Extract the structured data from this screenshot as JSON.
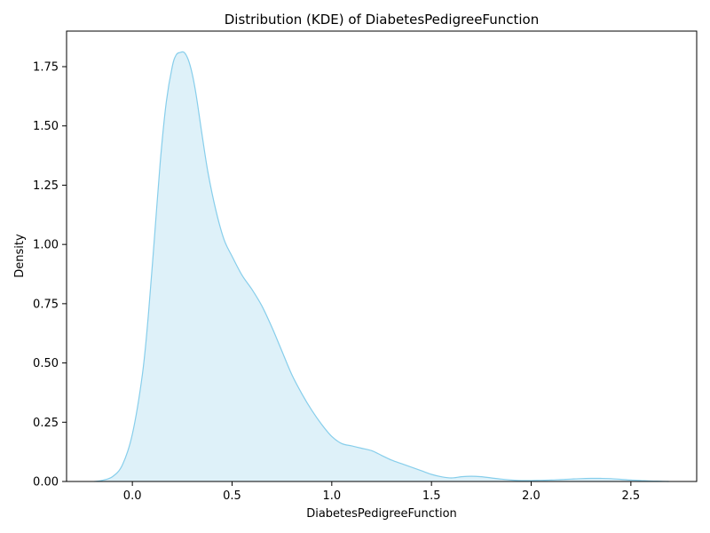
{
  "chart_data": {
    "type": "area",
    "title": "Distribution (KDE) of DiabetesPedigreeFunction",
    "xlabel": "DiabetesPedigreeFunction",
    "ylabel": "Density",
    "xlim": [
      -0.33,
      2.83
    ],
    "ylim": [
      0.0,
      1.9
    ],
    "xticks": [
      0.0,
      0.5,
      1.0,
      1.5,
      2.0,
      2.5
    ],
    "xtick_labels": [
      "0.0",
      "0.5",
      "1.0",
      "1.5",
      "2.0",
      "2.5"
    ],
    "yticks": [
      0.0,
      0.25,
      0.5,
      0.75,
      1.0,
      1.25,
      1.5,
      1.75
    ],
    "ytick_labels": [
      "0.00",
      "0.25",
      "0.50",
      "0.75",
      "1.00",
      "1.25",
      "1.50",
      "1.75"
    ],
    "grid": false,
    "line_color": "#87ceeb",
    "fill_color": "#87ceeb",
    "fill_opacity": 0.28,
    "series": [
      {
        "x": [
          -0.19,
          -0.15,
          -0.1,
          -0.05,
          0.0,
          0.05,
          0.08,
          0.11,
          0.14,
          0.17,
          0.2,
          0.22,
          0.24,
          0.26,
          0.28,
          0.3,
          0.32,
          0.35,
          0.38,
          0.42,
          0.46,
          0.5,
          0.55,
          0.6,
          0.65,
          0.7,
          0.75,
          0.8,
          0.85,
          0.9,
          0.95,
          1.0,
          1.05,
          1.1,
          1.15,
          1.2,
          1.25,
          1.3,
          1.35,
          1.4,
          1.45,
          1.5,
          1.55,
          1.6,
          1.65,
          1.7,
          1.75,
          1.8,
          1.85,
          1.9,
          1.95,
          2.0,
          2.05,
          2.1,
          2.15,
          2.2,
          2.25,
          2.3,
          2.35,
          2.4,
          2.45,
          2.5,
          2.55,
          2.6,
          2.65,
          2.69
        ],
        "y": [
          0.0,
          0.005,
          0.02,
          0.07,
          0.2,
          0.45,
          0.7,
          1.02,
          1.35,
          1.6,
          1.75,
          1.8,
          1.81,
          1.81,
          1.78,
          1.72,
          1.63,
          1.46,
          1.3,
          1.14,
          1.02,
          0.95,
          0.87,
          0.81,
          0.74,
          0.65,
          0.55,
          0.45,
          0.37,
          0.3,
          0.24,
          0.19,
          0.16,
          0.15,
          0.14,
          0.13,
          0.11,
          0.09,
          0.075,
          0.06,
          0.045,
          0.03,
          0.02,
          0.015,
          0.02,
          0.022,
          0.02,
          0.015,
          0.01,
          0.006,
          0.004,
          0.004,
          0.005,
          0.006,
          0.008,
          0.01,
          0.012,
          0.013,
          0.013,
          0.012,
          0.009,
          0.006,
          0.004,
          0.002,
          0.001,
          0.0
        ]
      }
    ]
  }
}
